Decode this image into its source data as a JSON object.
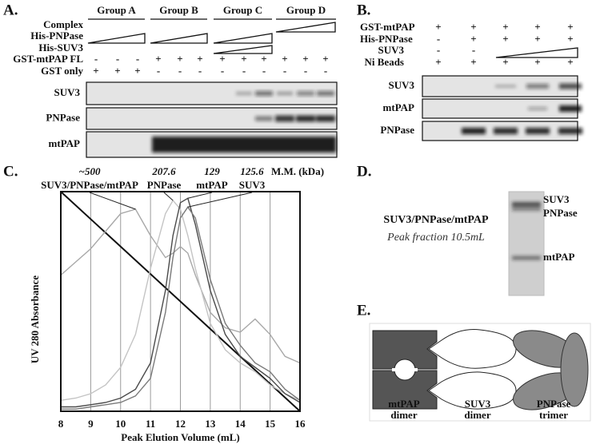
{
  "panel_a": {
    "letter": "A.",
    "groups": [
      "Group A",
      "Group B",
      "Group C",
      "Group D"
    ],
    "wedge_rows": [
      "Complex",
      "His-PNPase",
      "His-SUV3"
    ],
    "sign_rows": [
      {
        "label": "GST-mtPAP FL",
        "signs": [
          "-",
          "-",
          "-",
          "+",
          "+",
          "+",
          "+",
          "+",
          "+",
          "+",
          "+",
          "+"
        ]
      },
      {
        "label": "GST only",
        "signs": [
          "+",
          "+",
          "+",
          "-",
          "-",
          "-",
          "-",
          "-",
          "-",
          "-",
          "-",
          "-"
        ]
      }
    ],
    "blots": [
      "SUV3",
      "PNPase",
      "mtPAP"
    ]
  },
  "panel_b": {
    "letter": "B.",
    "sign_rows": [
      {
        "label": "GST-mtPAP",
        "signs": [
          "+",
          "+",
          "+",
          "+",
          "+"
        ]
      },
      {
        "label": "His-PNPase",
        "signs": [
          "-",
          "+",
          "+",
          "+",
          "+"
        ]
      },
      {
        "label": "SUV3",
        "signs": [
          "-",
          "-"
        ]
      },
      {
        "label": "Ni Beads",
        "signs": [
          "+",
          "+",
          "+",
          "+",
          "+"
        ]
      }
    ],
    "blots": [
      "SUV3",
      "mtPAP",
      "PNPase"
    ]
  },
  "chart_data": {
    "type": "line",
    "letter": "C.",
    "xlabel": "Peak Elution Volume (mL)",
    "ylabel": "UV 280 Absorbance",
    "mass_header": "M.M. (kDa)",
    "masses": [
      "~500",
      "207.6",
      "129",
      "125.6"
    ],
    "x": [
      8,
      8.5,
      9,
      9.5,
      10,
      10.5,
      11,
      11.5,
      11.75,
      12,
      12.25,
      12.5,
      13,
      13.5,
      14,
      14.5,
      15,
      15.5,
      16
    ],
    "xlim": [
      8,
      16
    ],
    "xticks": [
      8,
      9,
      10,
      11,
      12,
      13,
      14,
      15,
      16
    ],
    "ylim": [
      0,
      100
    ],
    "grid": true,
    "series": [
      {
        "name": "SUV3/PNPase/mtPAP",
        "color": "#a8a8a8",
        "values": [
          62,
          68,
          74,
          82,
          90,
          92,
          80,
          70,
          72,
          75,
          72,
          62,
          45,
          38,
          36,
          42,
          35,
          25,
          22
        ]
      },
      {
        "name": "PNPase",
        "color": "#c4c4c4",
        "values": [
          5,
          6,
          8,
          12,
          20,
          35,
          65,
          90,
          96,
          92,
          80,
          65,
          40,
          28,
          22,
          18,
          12,
          8,
          5
        ]
      },
      {
        "name": "mtPAP",
        "color": "#4a4a4a",
        "values": [
          2,
          2,
          3,
          4,
          6,
          10,
          22,
          55,
          80,
          95,
          97,
          85,
          55,
          35,
          25,
          20,
          15,
          8,
          4
        ]
      },
      {
        "name": "SUV3",
        "color": "#7a7a7a",
        "values": [
          1,
          1,
          2,
          3,
          4,
          7,
          15,
          45,
          70,
          88,
          93,
          88,
          60,
          40,
          30,
          22,
          18,
          10,
          5
        ]
      }
    ]
  },
  "panel_d": {
    "letter": "D.",
    "title": "SUV3/PNPase/mtPAP",
    "subtitle": "Peak fraction 10.5mL",
    "bands": [
      "SUV3",
      "PNPase",
      "mtPAP"
    ]
  },
  "panel_e": {
    "letter": "E.",
    "labels": [
      [
        "mtPAP",
        "dimer"
      ],
      [
        "SUV3",
        "dimer"
      ],
      [
        "PNPase",
        "trimer"
      ]
    ]
  }
}
